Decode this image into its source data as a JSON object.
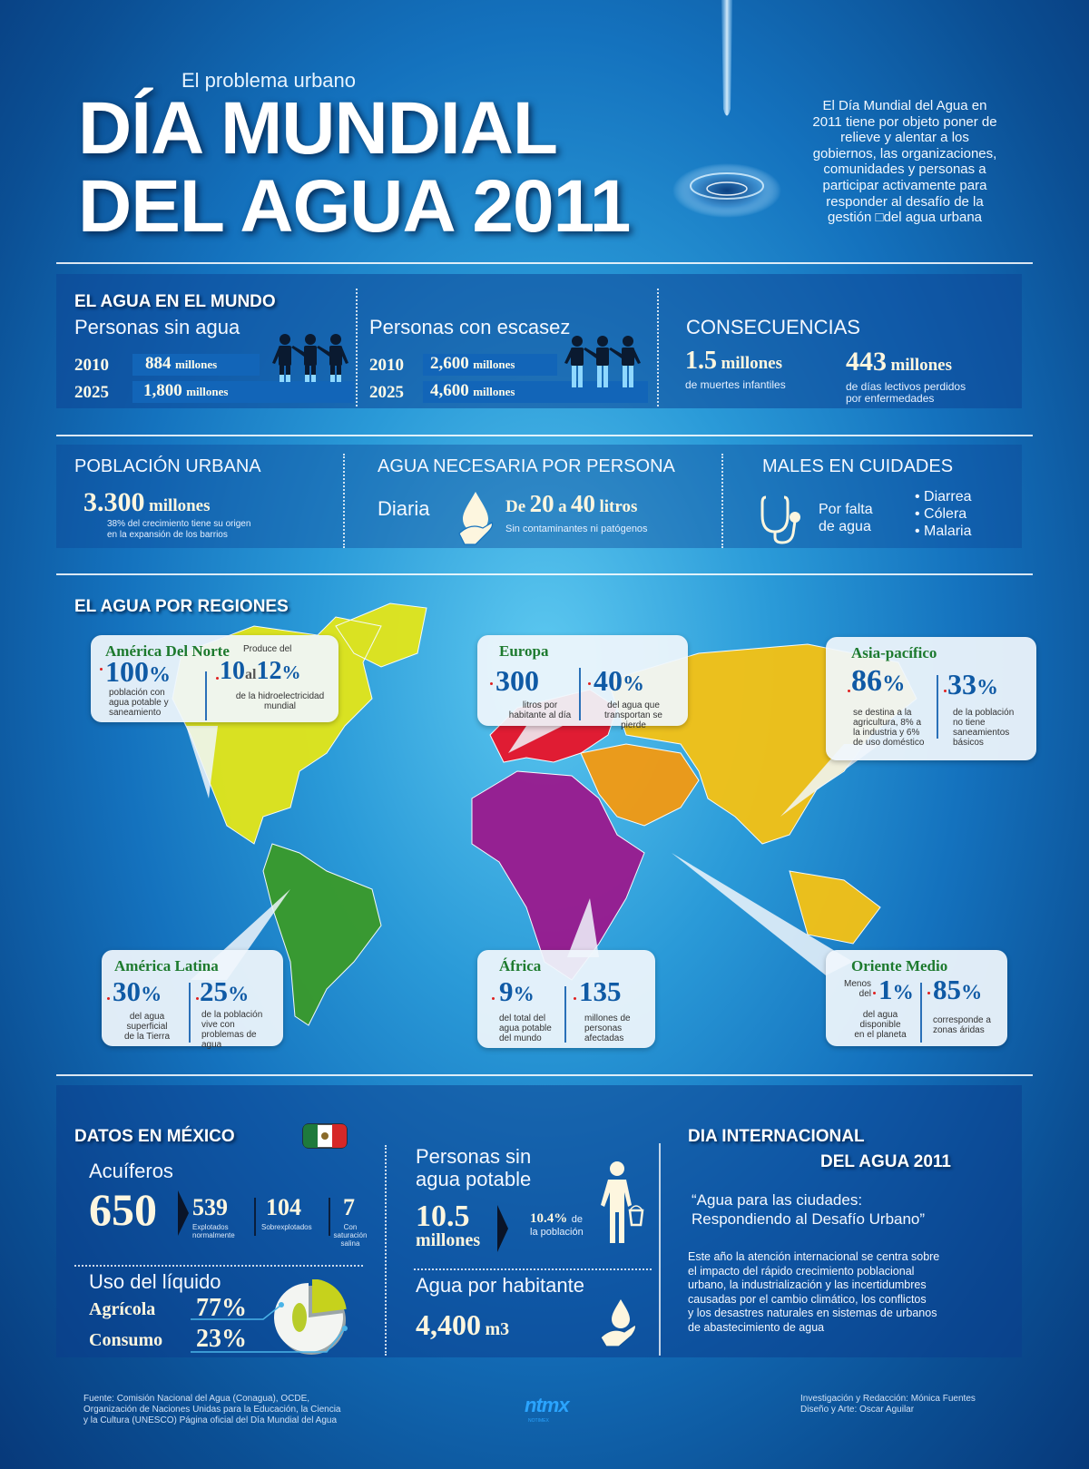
{
  "header": {
    "subtitle": "El problema urbano",
    "title_line1": "DÍA MUNDIAL",
    "title_line2": "DEL AGUA 2011",
    "intro_lines": [
      "El Día Mundial del Agua en",
      "2011 tiene por objeto poner de",
      "relieve y alentar a los",
      "gobiernos, las organizaciones,",
      "comunidades y personas a",
      "participar activamente para",
      "responder al desafío de la",
      "gestión □del agua urbana"
    ]
  },
  "mundo": {
    "title": "EL AGUA EN EL MUNDO",
    "sin_agua": {
      "heading": "Personas sin agua",
      "rows": [
        {
          "year": "2010",
          "value": "884",
          "unit": "millones"
        },
        {
          "year": "2025",
          "value": "1,800",
          "unit": "millones"
        }
      ]
    },
    "escasez": {
      "heading": "Personas con escasez",
      "rows": [
        {
          "year": "2010",
          "value": "2,600",
          "unit": "millones"
        },
        {
          "year": "2025",
          "value": "4,600",
          "unit": "millones"
        }
      ]
    },
    "consecuencias": {
      "heading": "CONSECUENCIAS",
      "items": [
        {
          "value": "1.5",
          "unit": "millones",
          "desc1": "de muertes infantiles",
          "desc2": ""
        },
        {
          "value": "443",
          "unit": "millones",
          "desc1": "de días lectivos perdidos",
          "desc2": "por enfermedades"
        }
      ]
    }
  },
  "urbana": {
    "poblacion": {
      "heading": "POBLACIÓN URBANA",
      "value": "3.300",
      "unit": "millones",
      "desc1": "38% del crecimiento tiene su origen",
      "desc2": "en la expansión de los barrios"
    },
    "agua_necesaria": {
      "heading": "AGUA NECESARIA POR PERSONA",
      "label": "Diaria",
      "pre": "De",
      "min": "20",
      "mid": "a",
      "max": "40",
      "unit": "litros",
      "desc": "Sin contaminantes ni patógenos"
    },
    "males": {
      "heading": "MALES EN CUIDADES",
      "label1": "Por falta",
      "label2": "de agua",
      "items": [
        "Diarrea",
        "Cólera",
        "Malaria"
      ]
    }
  },
  "regiones": {
    "title": "EL AGUA POR REGIONES",
    "colors": {
      "norte": "#e3e619",
      "latina": "#3a9a2a",
      "europa": "#e8142a",
      "africa": "#9a1a8e",
      "oriente": "#f39a12",
      "asia": "#f5c214"
    },
    "cards": {
      "norte": {
        "name": "América Del Norte",
        "a_value": "100",
        "a_suffix": "%",
        "a_desc": [
          "población con",
          "agua potable y",
          "saneamiento"
        ],
        "b_pre": "Produce del",
        "b_v1": "10",
        "b_mid": "al",
        "b_v2": "12",
        "b_suffix": "%",
        "b_desc": [
          "de la hidroelectricidad",
          "mundial"
        ]
      },
      "europa": {
        "name": "Europa",
        "a_value": "300",
        "a_desc": [
          "litros por",
          "habitante al día"
        ],
        "b_value": "40",
        "b_suffix": "%",
        "b_desc": [
          "del agua que",
          "transportan se",
          "pierde"
        ]
      },
      "asia": {
        "name": "Asia-pacífico",
        "a_value": "86",
        "a_suffix": "%",
        "a_desc": [
          "se destina a la",
          "agricultura, 8% a",
          "la industria y 6%",
          "de uso doméstico"
        ],
        "b_value": "33",
        "b_suffix": "%",
        "b_desc": [
          "de la población",
          "no tiene",
          "saneamientos",
          "básicos"
        ]
      },
      "latina": {
        "name": "América Latina",
        "a_value": "30",
        "a_suffix": "%",
        "a_desc": [
          "del agua",
          "superficial",
          "de la Tierra"
        ],
        "b_value": "25",
        "b_suffix": "%",
        "b_desc": [
          "de la población",
          "vive con",
          "problemas de",
          "agua"
        ]
      },
      "africa": {
        "name": "África",
        "a_value": "9",
        "a_suffix": "%",
        "a_desc": [
          "del total del",
          "agua potable",
          "del mundo"
        ],
        "b_value": "135",
        "b_desc": [
          "millones de",
          "personas",
          "afectadas"
        ]
      },
      "oriente": {
        "name": "Oriente Medio",
        "a_pre1": "Menos",
        "a_pre2": "del",
        "a_value": "1",
        "a_suffix": "%",
        "a_desc": [
          "del agua",
          "disponible",
          "en el planeta"
        ],
        "b_value": "85",
        "b_suffix": "%",
        "b_desc": [
          "corresponde a",
          "zonas áridas"
        ]
      }
    }
  },
  "mexico": {
    "title": "DATOS EN MÉXICO",
    "acuiferos": {
      "heading": "Acuíferos",
      "total": "650",
      "items": [
        {
          "value": "539",
          "label": [
            "Explotados",
            "normalmente"
          ]
        },
        {
          "value": "104",
          "label": [
            "Sobrexplotados"
          ]
        },
        {
          "value": "7",
          "label": [
            "Con",
            "saturación",
            "salina"
          ]
        }
      ]
    },
    "uso": {
      "heading": "Uso del líquido",
      "rows": [
        {
          "label": "Agrícola",
          "value": "77%"
        },
        {
          "label": "Consumo",
          "value": "23%"
        }
      ],
      "pie": [
        77,
        23
      ]
    },
    "sin_potable": {
      "heading1": "Personas sin",
      "heading2": "agua potable",
      "value": "10.5",
      "unit": "millones",
      "pct": "10.4%",
      "pct_tail": "de",
      "pct_desc": "la población"
    },
    "habitante": {
      "heading": "Agua por habitante",
      "value": "4,400",
      "unit": "m3"
    }
  },
  "internacional": {
    "title1": "DIA INTERNACIONAL",
    "title2": "DEL AGUA 2011",
    "quote1": "“Agua para las ciudades:",
    "quote2": "Respondiendo al Desafío Urbano”",
    "body": [
      "Este año la atención internacional se centra sobre",
      "el impacto del rápido crecimiento poblacional",
      "urbano, la industrialización y las incertidumbres",
      "causadas por el cambio climático, los conflictos",
      "y los desastres naturales en sistemas de urbanos",
      "de abastecimiento de agua"
    ]
  },
  "footer": {
    "source": [
      "Fuente: Comisión Nacional del Agua (Conagua), OCDE,",
      "Organización de Naciones Unidas para la Educación, la Ciencia",
      "y la Cultura (UNESCO) Página oficial del Día Mundial del Agua"
    ],
    "logo": "ntmx",
    "logo_sub": "NOTIMEX",
    "credits": [
      "Investigación y Redacción: Mónica Fuentes",
      "Diseño y Arte: Oscar Aguilar"
    ]
  }
}
